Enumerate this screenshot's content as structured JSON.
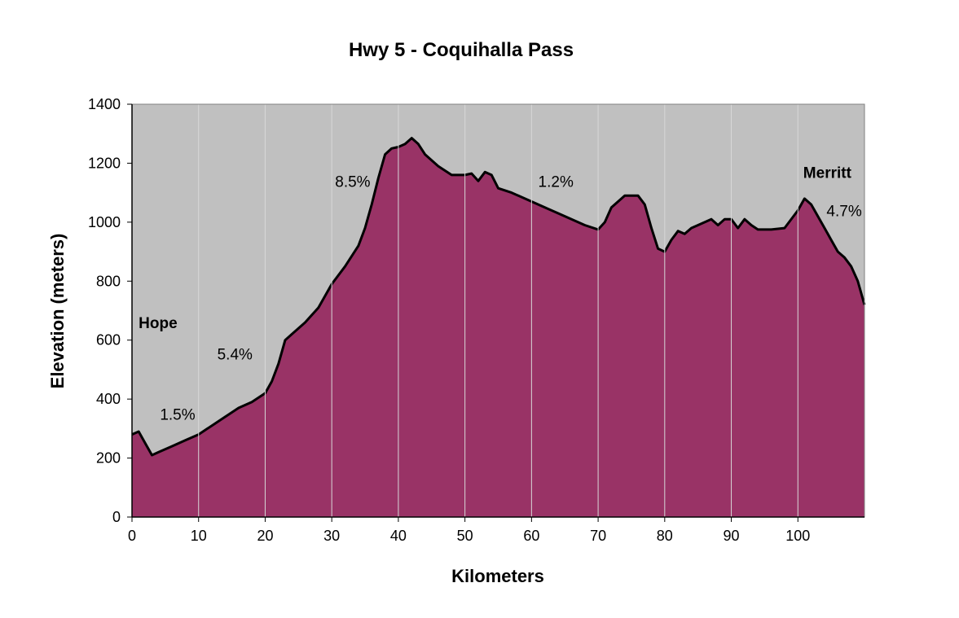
{
  "chart_data": {
    "type": "area",
    "title": "Hwy 5 - Coquihalla Pass",
    "xlabel": "Kilometers",
    "ylabel": "Elevation (meters)",
    "xlim": [
      0,
      110
    ],
    "ylim": [
      0,
      1400
    ],
    "xticks": [
      0,
      10,
      20,
      30,
      40,
      50,
      60,
      70,
      80,
      90,
      100
    ],
    "yticks": [
      0,
      200,
      400,
      600,
      800,
      1000,
      1200,
      1400
    ],
    "grid": "vertical",
    "colors": {
      "plot_background": "#c0c0c0",
      "area_fill": "#993366",
      "area_outline": "#000000",
      "gridline": "#d8d8d8"
    },
    "x": [
      0,
      1,
      2,
      3,
      4,
      6,
      8,
      10,
      12,
      14,
      16,
      18,
      20,
      21,
      22,
      23,
      24,
      26,
      28,
      30,
      32,
      34,
      35,
      36,
      37,
      38,
      39,
      40,
      41,
      42,
      43,
      44,
      46,
      48,
      50,
      51,
      52,
      53,
      54,
      55,
      57,
      60,
      62,
      64,
      66,
      68,
      70,
      71,
      72,
      74,
      76,
      77,
      78,
      79,
      80,
      81,
      82,
      83,
      84,
      85,
      87,
      88,
      89,
      90,
      91,
      92,
      93,
      94,
      96,
      98,
      100,
      101,
      102,
      103,
      104,
      105,
      106,
      107,
      108,
      109,
      110
    ],
    "y": [
      280,
      290,
      250,
      210,
      220,
      240,
      260,
      280,
      310,
      340,
      370,
      390,
      420,
      460,
      520,
      600,
      620,
      660,
      710,
      790,
      850,
      920,
      980,
      1060,
      1150,
      1230,
      1250,
      1255,
      1265,
      1285,
      1265,
      1230,
      1190,
      1160,
      1160,
      1165,
      1140,
      1170,
      1160,
      1115,
      1100,
      1070,
      1050,
      1030,
      1010,
      990,
      975,
      1000,
      1050,
      1090,
      1090,
      1060,
      980,
      910,
      900,
      940,
      970,
      960,
      980,
      990,
      1010,
      990,
      1010,
      1010,
      980,
      1010,
      990,
      975,
      975,
      980,
      1040,
      1080,
      1060,
      1020,
      980,
      940,
      900,
      880,
      850,
      800,
      720
    ],
    "annotations": [
      {
        "text": "Hope",
        "x": 1,
        "y": 640,
        "bold": true
      },
      {
        "text": "1.5%",
        "x": 4.2,
        "y": 330,
        "bold": false
      },
      {
        "text": "5.4%",
        "x": 12.8,
        "y": 535,
        "bold": false
      },
      {
        "text": "8.5%",
        "x": 30.5,
        "y": 1120,
        "bold": false
      },
      {
        "text": "1.2%",
        "x": 61,
        "y": 1120,
        "bold": false
      },
      {
        "text": "Merritt",
        "x": 100.8,
        "y": 1150,
        "bold": true
      },
      {
        "text": "4.7%",
        "x": 104.3,
        "y": 1020,
        "bold": false
      }
    ]
  }
}
